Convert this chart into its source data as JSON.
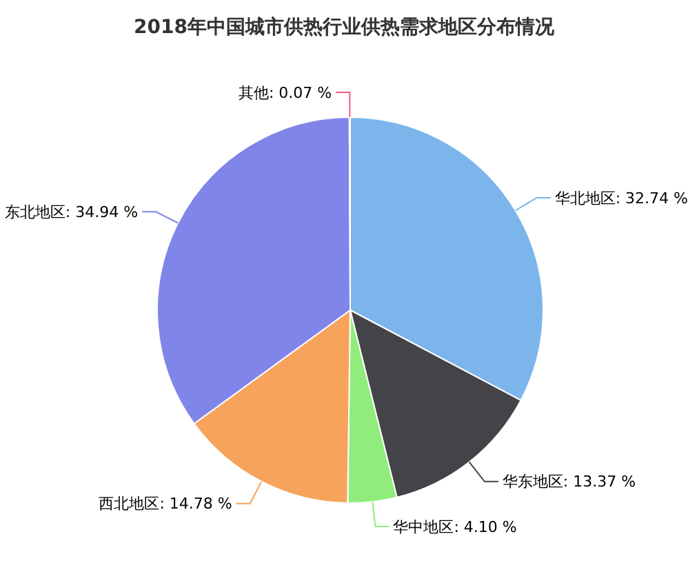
{
  "chart_data": {
    "type": "pie",
    "title": "2018年中国城市供热行业供热需求地区分布情况",
    "categories": [
      "华北地区",
      "华东地区",
      "华中地区",
      "西北地区",
      "东北地区",
      "其他"
    ],
    "values": [
      32.74,
      13.37,
      4.1,
      14.78,
      34.94,
      0.07
    ],
    "value_labels": [
      "32.74 %",
      "13.37 %",
      "4.10 %",
      "14.78 %",
      "34.94 %",
      "0.07 %"
    ],
    "colors": [
      "#7cb5ec",
      "#434348",
      "#90ed7d",
      "#f7a35c",
      "#8085e9",
      "#f15c80"
    ]
  }
}
